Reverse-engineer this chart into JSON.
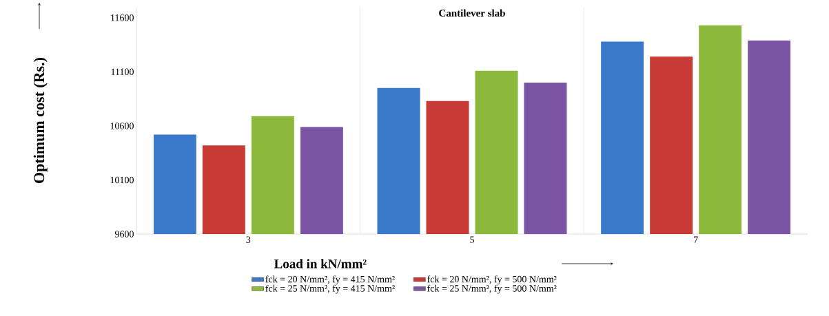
{
  "chart_data": {
    "type": "bar",
    "title": "Cantilever slab",
    "xlabel": "Load in kN/mm²",
    "ylabel": "Optimum cost (Rs.)",
    "categories": [
      "3",
      "5",
      "7"
    ],
    "series": [
      {
        "name": "fck = 20 N/mm², fy = 415 N/mm²",
        "color": "#3a78c9",
        "values": [
          10520,
          10950,
          11380
        ]
      },
      {
        "name": "fck = 20 N/mm², fy = 500 N/mm²",
        "color": "#c83a36",
        "values": [
          10420,
          10830,
          11240
        ]
      },
      {
        "name": "fck = 25 N/mm², fy = 415 N/mm²",
        "color": "#8cb83c",
        "values": [
          10690,
          11110,
          11530
        ]
      },
      {
        "name": "fck = 25 N/mm², fy = 500 N/mm²",
        "color": "#7b54a3",
        "values": [
          10590,
          11000,
          11390
        ]
      }
    ],
    "ylim": [
      9600,
      11700
    ],
    "yticks": [
      9600,
      10100,
      10600,
      11100,
      11600
    ],
    "grid": "x",
    "legend": "bottom"
  }
}
